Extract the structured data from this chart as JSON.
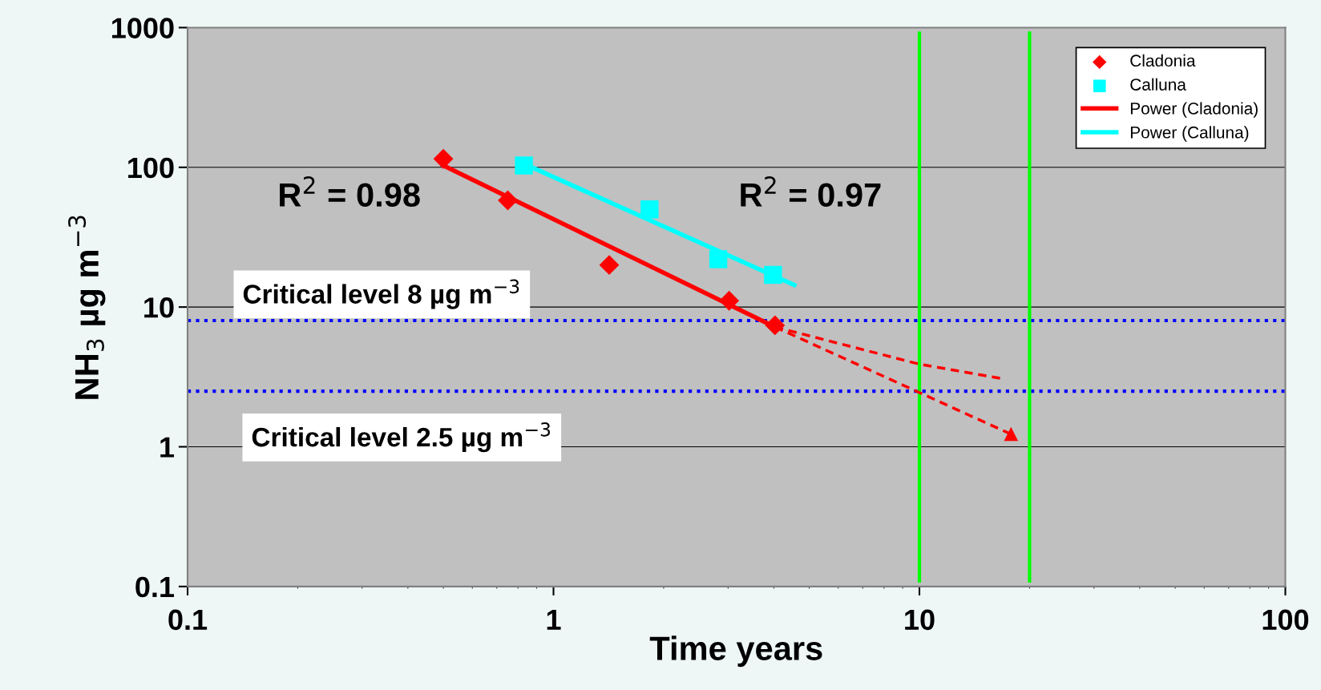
{
  "chart_data": {
    "type": "scatter",
    "xlabel": "Time years",
    "ylabel": "NH$_{3}$ µg m$^{−3}$",
    "log": "xy",
    "xlim": [
      0.1,
      100
    ],
    "ylim": [
      0.1,
      1000
    ],
    "xticks": [
      0.1,
      1,
      10,
      100
    ],
    "yticks": [
      0.1,
      1,
      10,
      100,
      1000
    ],
    "grid": "y",
    "legend": "top right",
    "series": [
      {
        "name": "Cladonia",
        "marker": "diamond",
        "color": "#ff0000",
        "x": [
          0.5,
          0.75,
          1.42,
          3.02,
          4.03
        ],
        "values": [
          115,
          58,
          20,
          11.1,
          7.4
        ]
      },
      {
        "name": "Calluna",
        "marker": "square",
        "color": "#00ffff",
        "x": [
          0.83,
          1.83,
          2.82,
          3.98
        ],
        "values": [
          103,
          50,
          22,
          17
        ]
      },
      {
        "name": "Power (Cladonia)",
        "type": "line",
        "line_style": "solid",
        "color": "#ff0000",
        "x": [
          0.5,
          4.03
        ],
        "values": [
          103,
          7.2
        ]
      },
      {
        "name": "Power (Calluna)",
        "type": "line",
        "line_style": "solid",
        "color": "#00ffff",
        "x": [
          0.83,
          4.55
        ],
        "values": [
          106,
          14.4
        ]
      },
      {
        "type": "line",
        "line_style": "dashed",
        "color": "#ff0000",
        "x": [
          4.03,
          10,
          16.9
        ],
        "values": [
          7.2,
          3.9,
          3.07
        ]
      },
      {
        "type": "line",
        "line_style": "dashed",
        "color": "#ff0000",
        "x": [
          4.03,
          17.8
        ],
        "values": [
          7.2,
          1.23
        ],
        "marker": "triangle"
      }
    ],
    "ref_lines": [
      {
        "axis": "y",
        "value": 8,
        "label": "Critical level 8 µg m$^{−3}$",
        "color": "#0000ff",
        "line_style": "dotted"
      },
      {
        "axis": "y",
        "value": 2.5,
        "label": "Critical level 2.5 µg m$^{−3}$",
        "color": "#0000ff",
        "line_style": "dotted"
      },
      {
        "axis": "x",
        "value": 10,
        "color": "#00ff00",
        "line_style": "solid"
      },
      {
        "axis": "x",
        "value": 20,
        "color": "#00ff00",
        "line_style": "solid"
      }
    ],
    "annotations": [
      "R$^{2}$ = 0.98",
      "R$^{2}$ = 0.97"
    ]
  }
}
